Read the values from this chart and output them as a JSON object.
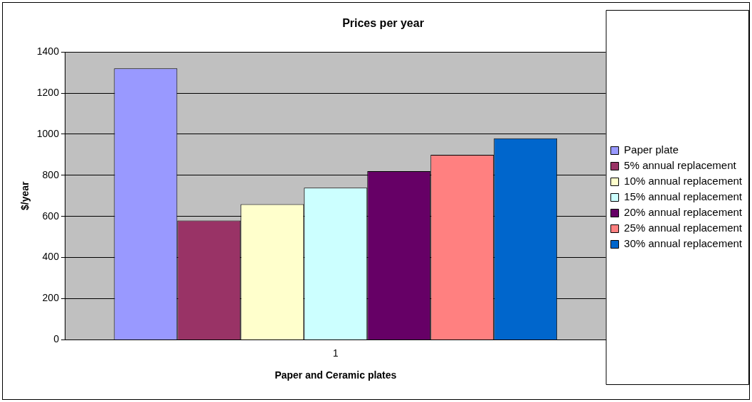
{
  "chart_data": {
    "type": "bar",
    "title": "Prices per year",
    "xlabel": "Paper and Ceramic plates",
    "ylabel": "$/year",
    "categories": [
      "1"
    ],
    "series": [
      {
        "name": "Paper plate",
        "color": "#9999ff",
        "values": [
          1320
        ]
      },
      {
        "name": "5% annual replacement",
        "color": "#993366",
        "values": [
          580
        ]
      },
      {
        "name": "10% annual replacement",
        "color": "#ffffcc",
        "values": [
          660
        ]
      },
      {
        "name": "15% annual replacement",
        "color": "#ccffff",
        "values": [
          740
        ]
      },
      {
        "name": "20% annual replacement",
        "color": "#660066",
        "values": [
          820
        ]
      },
      {
        "name": "25% annual replacement",
        "color": "#ff8080",
        "values": [
          900
        ]
      },
      {
        "name": "30% annual replacement",
        "color": "#0066cc",
        "values": [
          980
        ]
      }
    ],
    "ylim": [
      0,
      1400
    ],
    "yticks": [
      0,
      200,
      400,
      600,
      800,
      1000,
      1200,
      1400
    ],
    "grid": "y",
    "legend": "right"
  }
}
